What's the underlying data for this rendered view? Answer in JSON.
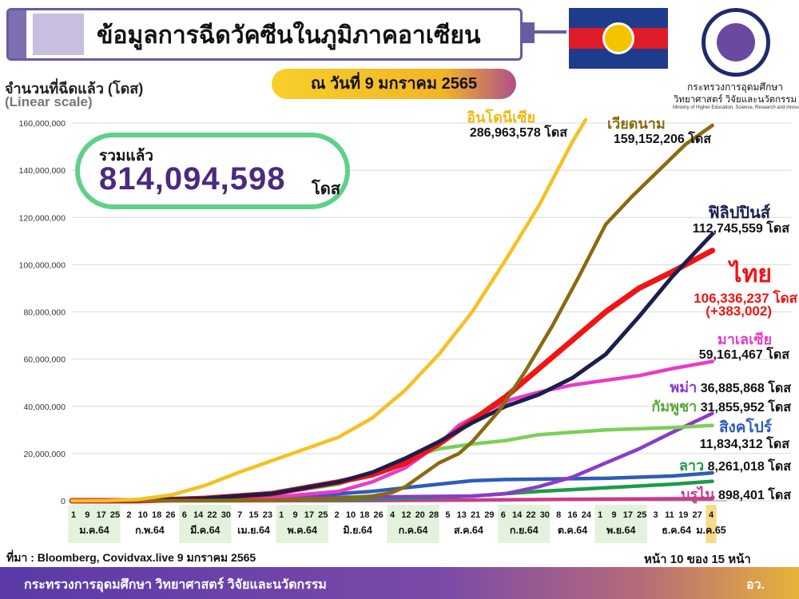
{
  "header": {
    "title": "ข้อมูลการฉีดวัคซีนในภูมิภาคอาเซียน",
    "date": "ณ วันที่ 9 มกราคม 2565",
    "ministry_th": "กระทรวงการอุดมศึกษา",
    "ministry_th2": "วิทยาศาสตร์ วิจัยและนวัตกรรม",
    "ministry_en": "Ministry of Higher Education, Science, Research and Innovation"
  },
  "total": {
    "label": "รวมแล้ว",
    "value": "814,094,598",
    "unit": "โดส"
  },
  "footer": {
    "source": "ที่มา : Bloomberg, Covidvax.live 9 มกราคม 2565",
    "page": "หน้า 10 ของ 15 หน้า",
    "org": "กระทรวงการอุดมศึกษา วิทยาศาสตร์ วิจัยและนวัตกรรม",
    "org_short": "อว."
  },
  "chart_data": {
    "type": "line",
    "ylabel": "จำนวนที่ฉีดแล้ว (โดส)",
    "scale_note": "(Linear scale)",
    "ylim": [
      0,
      160000000
    ],
    "yticks": [
      0,
      20000000,
      40000000,
      60000000,
      80000000,
      100000000,
      120000000,
      140000000,
      160000000
    ],
    "ytick_labels": [
      "0",
      "20,000,000",
      "40,000,000",
      "60,000,000",
      "80,000,000",
      "100,000,000",
      "120,000,000",
      "140,000,000",
      "160,000,000"
    ],
    "grid": true,
    "x_day_ticks": [
      "1",
      "9",
      "17",
      "25",
      "2",
      "10",
      "18",
      "26",
      "6",
      "14",
      "22",
      "30",
      "7",
      "15",
      "23",
      "1",
      "9",
      "17",
      "25",
      "2",
      "10",
      "18",
      "26",
      "4",
      "12",
      "20",
      "28",
      "5",
      "13",
      "21",
      "29",
      "6",
      "14",
      "22",
      "30",
      "8",
      "16",
      "24",
      "1",
      "9",
      "17",
      "25",
      "3",
      "11",
      "19",
      "27",
      "4"
    ],
    "x_month_labels": [
      "ม.ค.64",
      "ก.พ.64",
      "มี.ค.64",
      "เม.ย.64",
      "พ.ค.64",
      "มิ.ย.64",
      "ก.ค.64",
      "ส.ค.64",
      "ก.ย.64",
      "ต.ค.64",
      "พ.ย.64",
      "ธ.ค.64",
      "ม.ค.65"
    ],
    "series": [
      {
        "name": "อินโดนีเซีย",
        "total_label": "286,963,578",
        "unit": "โดส",
        "color": "#f6c024",
        "points": [
          [
            0,
            0
          ],
          [
            5,
            20000
          ],
          [
            10,
            600000
          ],
          [
            15,
            2500000
          ],
          [
            20,
            6500000
          ],
          [
            25,
            12000000
          ],
          [
            30,
            17000000
          ],
          [
            35,
            22000000
          ],
          [
            40,
            27000000
          ],
          [
            45,
            35000000
          ],
          [
            50,
            47000000
          ],
          [
            55,
            62000000
          ],
          [
            60,
            80000000
          ],
          [
            65,
            102000000
          ],
          [
            70,
            125000000
          ],
          [
            75,
            152000000
          ],
          [
            77,
            162000000
          ]
        ]
      },
      {
        "name": "เวียดนาม",
        "total_label": "159,152,206",
        "unit": "โดส",
        "color": "#8a6a10",
        "points": [
          [
            0,
            0
          ],
          [
            20,
            100000
          ],
          [
            30,
            300000
          ],
          [
            40,
            1000000
          ],
          [
            45,
            2000000
          ],
          [
            48,
            3500000
          ],
          [
            50,
            6000000
          ],
          [
            52,
            10000000
          ],
          [
            55,
            16000000
          ],
          [
            58,
            20000000
          ],
          [
            60,
            25000000
          ],
          [
            64,
            38000000
          ],
          [
            68,
            55000000
          ],
          [
            72,
            74000000
          ],
          [
            76,
            95000000
          ],
          [
            80,
            117000000
          ],
          [
            84,
            129000000
          ],
          [
            88,
            140000000
          ],
          [
            92,
            151000000
          ],
          [
            96,
            159000000
          ]
        ]
      },
      {
        "name": "ฟิลิปปินส์",
        "total_label": "112,745,559",
        "unit": "โดส",
        "color": "#1a1f4e",
        "points": [
          [
            0,
            0
          ],
          [
            10,
            100000
          ],
          [
            20,
            1000000
          ],
          [
            30,
            3000000
          ],
          [
            40,
            8000000
          ],
          [
            45,
            12000000
          ],
          [
            50,
            18000000
          ],
          [
            55,
            25000000
          ],
          [
            60,
            33000000
          ],
          [
            65,
            40000000
          ],
          [
            70,
            45000000
          ],
          [
            75,
            52000000
          ],
          [
            80,
            62000000
          ],
          [
            85,
            78000000
          ],
          [
            90,
            95000000
          ],
          [
            96,
            113000000
          ]
        ]
      },
      {
        "name": "ไทย",
        "total_label": "106,336,237",
        "extra_label": "(+383,002)",
        "unit": "โดส",
        "color": "#f01414",
        "points": [
          [
            0,
            0
          ],
          [
            10,
            50000
          ],
          [
            20,
            1000000
          ],
          [
            30,
            3000000
          ],
          [
            40,
            8000000
          ],
          [
            45,
            11000000
          ],
          [
            50,
            16000000
          ],
          [
            55,
            24000000
          ],
          [
            60,
            34000000
          ],
          [
            65,
            44000000
          ],
          [
            70,
            56000000
          ],
          [
            75,
            68000000
          ],
          [
            80,
            80000000
          ],
          [
            85,
            90000000
          ],
          [
            90,
            97000000
          ],
          [
            96,
            106000000
          ]
        ]
      },
      {
        "name": "มาเลเซีย",
        "total_label": "59,161,467",
        "unit": "โดส",
        "color": "#e83cc8",
        "points": [
          [
            0,
            0
          ],
          [
            10,
            100000
          ],
          [
            20,
            500000
          ],
          [
            30,
            1500000
          ],
          [
            40,
            4000000
          ],
          [
            45,
            8000000
          ],
          [
            50,
            14000000
          ],
          [
            55,
            24000000
          ],
          [
            58,
            32000000
          ],
          [
            62,
            38000000
          ],
          [
            66,
            43000000
          ],
          [
            70,
            46000000
          ],
          [
            75,
            49000000
          ],
          [
            80,
            51000000
          ],
          [
            85,
            53000000
          ],
          [
            90,
            56000000
          ],
          [
            96,
            59000000
          ]
        ]
      },
      {
        "name": "พม่า",
        "total_label": "36,885,868",
        "unit": "โดส",
        "color": "#8a3cc8",
        "points": [
          [
            0,
            0
          ],
          [
            20,
            500000
          ],
          [
            40,
            1500000
          ],
          [
            60,
            2000000
          ],
          [
            65,
            3000000
          ],
          [
            70,
            6000000
          ],
          [
            75,
            10000000
          ],
          [
            80,
            16000000
          ],
          [
            85,
            22000000
          ],
          [
            90,
            29000000
          ],
          [
            96,
            37000000
          ]
        ]
      },
      {
        "name": "กัมพูชา",
        "total_label": "31,855,952",
        "unit": "โดส",
        "color": "#7ccf5a",
        "points": [
          [
            0,
            0
          ],
          [
            10,
            100000
          ],
          [
            20,
            1000000
          ],
          [
            30,
            3000000
          ],
          [
            40,
            7000000
          ],
          [
            45,
            12000000
          ],
          [
            50,
            18000000
          ],
          [
            55,
            22000000
          ],
          [
            60,
            24000000
          ],
          [
            65,
            25500000
          ],
          [
            70,
            28000000
          ],
          [
            75,
            29000000
          ],
          [
            80,
            30000000
          ],
          [
            90,
            31000000
          ],
          [
            96,
            31900000
          ]
        ]
      },
      {
        "name": "สิงคโปร์",
        "total_label": "11,834,312",
        "unit": "โดส",
        "color": "#2e5cb8",
        "points": [
          [
            0,
            0
          ],
          [
            10,
            50000
          ],
          [
            20,
            500000
          ],
          [
            30,
            1500000
          ],
          [
            40,
            3000000
          ],
          [
            45,
            4000000
          ],
          [
            50,
            5500000
          ],
          [
            55,
            7000000
          ],
          [
            60,
            8500000
          ],
          [
            65,
            9000000
          ],
          [
            80,
            9500000
          ],
          [
            90,
            10500000
          ],
          [
            96,
            11800000
          ]
        ]
      },
      {
        "name": "ลาว",
        "total_label": "8,261,018",
        "unit": "โดส",
        "color": "#1e9a4a",
        "points": [
          [
            0,
            0
          ],
          [
            20,
            100000
          ],
          [
            40,
            500000
          ],
          [
            50,
            1000000
          ],
          [
            60,
            2000000
          ],
          [
            70,
            4000000
          ],
          [
            80,
            5500000
          ],
          [
            90,
            7000000
          ],
          [
            96,
            8260000
          ]
        ]
      },
      {
        "name": "บรูไน",
        "total_label": "898,401",
        "unit": "โดส",
        "color": "#c83c8c",
        "points": [
          [
            0,
            0
          ],
          [
            40,
            50000
          ],
          [
            60,
            300000
          ],
          [
            80,
            700000
          ],
          [
            96,
            900000
          ]
        ]
      }
    ]
  }
}
